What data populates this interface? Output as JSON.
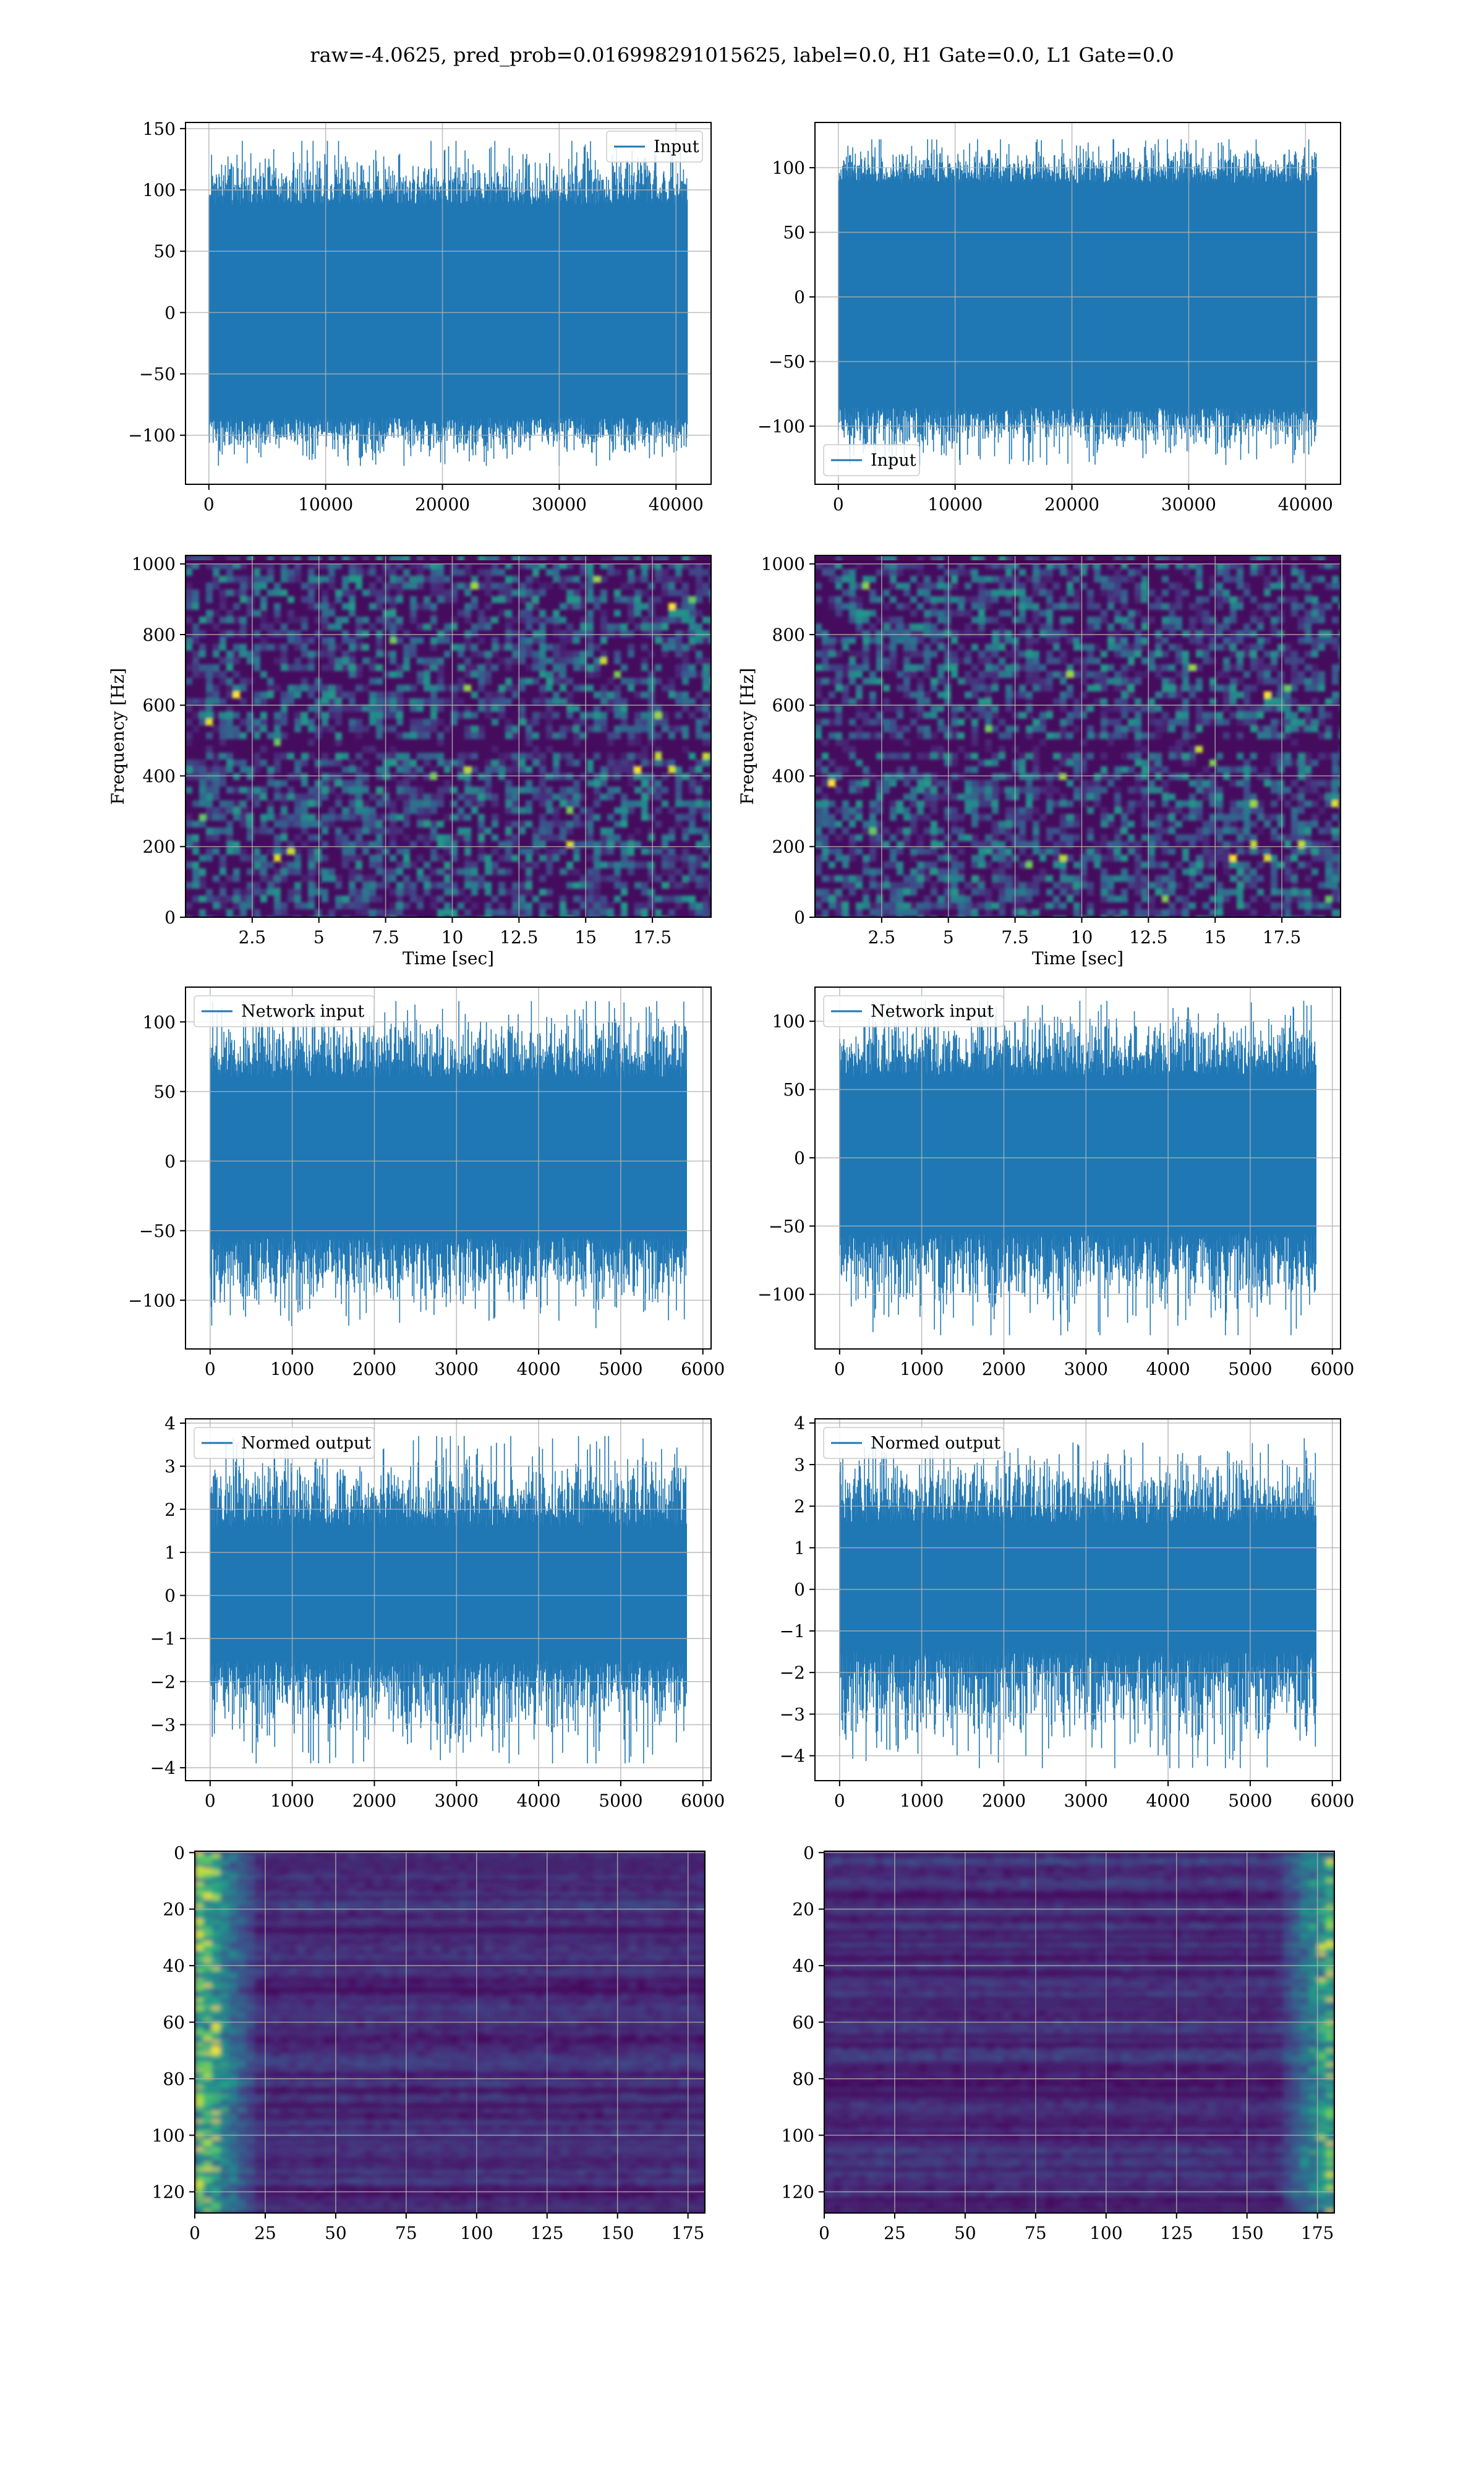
{
  "suptitle": "raw=-4.0625, pred_prob=0.016998291015625, label=0.0, H1 Gate=0.0, L1 Gate=0.0",
  "colors": {
    "line": "#1f77b4",
    "grid": "#b0b0b0"
  },
  "chart_data": [
    {
      "type": "line",
      "title": "",
      "legend": "top-right",
      "series": [
        {
          "name": "Input",
          "envelope": [
            -85,
            88
          ],
          "peak": [
            -125,
            140
          ],
          "x_extent": [
            0,
            40960
          ]
        }
      ],
      "xlim": [
        -2000,
        43000
      ],
      "ylim": [
        -140,
        155
      ],
      "xticks": [
        0,
        10000,
        20000,
        30000,
        40000
      ],
      "yticks": [
        -100,
        -50,
        0,
        50,
        100,
        150
      ],
      "grid": true
    },
    {
      "type": "line",
      "title": "",
      "legend": "bottom-left",
      "series": [
        {
          "name": "Input",
          "envelope": [
            -85,
            88
          ],
          "peak": [
            -130,
            122
          ],
          "x_extent": [
            0,
            40960
          ]
        }
      ],
      "xlim": [
        -2000,
        43000
      ],
      "ylim": [
        -145,
        135
      ],
      "xticks": [
        0,
        10000,
        20000,
        30000,
        40000
      ],
      "yticks": [
        -100,
        -50,
        0,
        50,
        100
      ],
      "grid": true
    },
    {
      "type": "heatmap",
      "title": "",
      "xlabel": "Time [sec]",
      "ylabel": "Frequency [Hz]",
      "colormap": "viridis",
      "xlim": [
        0,
        19.7
      ],
      "ylim": [
        0,
        1024
      ],
      "xticks": [
        2.5,
        5.0,
        7.5,
        10.0,
        12.5,
        15.0,
        17.5
      ],
      "yticks": [
        0,
        200,
        400,
        600,
        800,
        1000
      ],
      "grid": true
    },
    {
      "type": "heatmap",
      "title": "",
      "xlabel": "Time [sec]",
      "ylabel": "Frequency [Hz]",
      "colormap": "viridis",
      "xlim": [
        0,
        19.7
      ],
      "ylim": [
        0,
        1024
      ],
      "xticks": [
        2.5,
        5.0,
        7.5,
        10.0,
        12.5,
        15.0,
        17.5
      ],
      "yticks": [
        0,
        200,
        400,
        600,
        800,
        1000
      ],
      "grid": true
    },
    {
      "type": "line",
      "title": "",
      "legend": "top-left",
      "series": [
        {
          "name": "Network input",
          "envelope": [
            -55,
            60
          ],
          "peak": [
            -120,
            115
          ],
          "x_extent": [
            0,
            5800
          ]
        }
      ],
      "xlim": [
        -300,
        6100
      ],
      "ylim": [
        -135,
        125
      ],
      "xticks": [
        0,
        1000,
        2000,
        3000,
        4000,
        5000,
        6000
      ],
      "yticks": [
        -100,
        -50,
        0,
        50,
        100
      ],
      "grid": true
    },
    {
      "type": "line",
      "title": "",
      "legend": "top-left",
      "series": [
        {
          "name": "Network input",
          "envelope": [
            -55,
            60
          ],
          "peak": [
            -130,
            115
          ],
          "x_extent": [
            0,
            5800
          ]
        }
      ],
      "xlim": [
        -300,
        6100
      ],
      "ylim": [
        -140,
        125
      ],
      "xticks": [
        0,
        1000,
        2000,
        3000,
        4000,
        5000,
        6000
      ],
      "yticks": [
        -100,
        -50,
        0,
        50,
        100
      ],
      "grid": true
    },
    {
      "type": "line",
      "title": "",
      "legend": "top-left",
      "series": [
        {
          "name": "Normed output",
          "envelope": [
            -1.5,
            1.6
          ],
          "peak": [
            -3.9,
            3.7
          ],
          "x_extent": [
            0,
            5800
          ]
        }
      ],
      "xlim": [
        -300,
        6100
      ],
      "ylim": [
        -4.3,
        4.1
      ],
      "xticks": [
        0,
        1000,
        2000,
        3000,
        4000,
        5000,
        6000
      ],
      "yticks": [
        -4,
        -3,
        -2,
        -1,
        0,
        1,
        2,
        3,
        4
      ],
      "grid": true
    },
    {
      "type": "line",
      "title": "",
      "legend": "top-left",
      "series": [
        {
          "name": "Normed output",
          "envelope": [
            -1.5,
            1.6
          ],
          "peak": [
            -4.3,
            3.7
          ],
          "x_extent": [
            0,
            5800
          ]
        }
      ],
      "xlim": [
        -300,
        6100
      ],
      "ylim": [
        -4.6,
        4.1
      ],
      "xticks": [
        0,
        1000,
        2000,
        3000,
        4000,
        5000,
        6000
      ],
      "yticks": [
        -4,
        -3,
        -2,
        -1,
        0,
        1,
        2,
        3,
        4
      ],
      "grid": true
    },
    {
      "type": "heatmap",
      "title": "",
      "colormap": "viridis",
      "hot_region": "left",
      "xlim": [
        0,
        181
      ],
      "ylim": [
        127.5,
        -0.5
      ],
      "xticks": [
        0,
        25,
        50,
        75,
        100,
        125,
        150,
        175
      ],
      "yticks": [
        0,
        20,
        40,
        60,
        80,
        100,
        120
      ],
      "grid": true
    },
    {
      "type": "heatmap",
      "title": "",
      "colormap": "viridis",
      "hot_region": "right",
      "xlim": [
        0,
        181
      ],
      "ylim": [
        127.5,
        -0.5
      ],
      "xticks": [
        0,
        25,
        50,
        75,
        100,
        125,
        150,
        175
      ],
      "yticks": [
        0,
        20,
        40,
        60,
        80,
        100,
        120
      ],
      "grid": true
    }
  ]
}
